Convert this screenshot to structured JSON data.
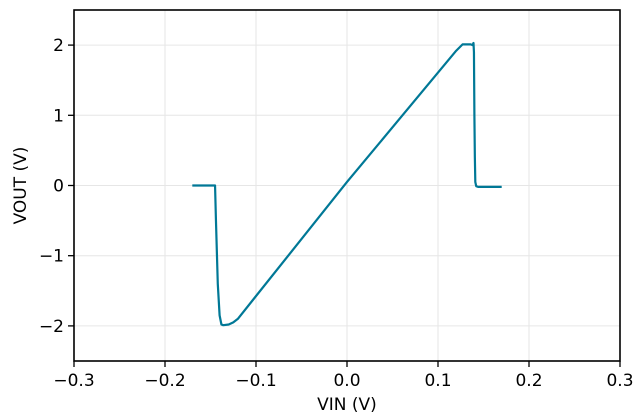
{
  "chart_data": {
    "type": "line",
    "title": "",
    "xlabel": "VIN (V)",
    "ylabel": "VOUT (V)",
    "xlim": [
      -0.3,
      0.3
    ],
    "ylim": [
      -2.5,
      2.5
    ],
    "xticks": [
      -0.3,
      -0.2,
      -0.1,
      0.0,
      0.1,
      0.2,
      0.3
    ],
    "xtick_labels": [
      "−0.3",
      "−0.2",
      "−0.1",
      "0.0",
      "0.1",
      "0.2",
      "0.3"
    ],
    "yticks": [
      -2,
      -1,
      0,
      1,
      2
    ],
    "ytick_labels": [
      "−2",
      "−1",
      "0",
      "1",
      "2"
    ],
    "grid": true,
    "series": [
      {
        "color": "#007896",
        "x": [
          -0.17,
          -0.145,
          -0.144,
          -0.142,
          -0.14,
          -0.138,
          -0.136,
          -0.13,
          -0.125,
          -0.12,
          0.0,
          0.12,
          0.127,
          0.132,
          0.136,
          0.138,
          0.139,
          0.1395,
          0.14,
          0.1405,
          0.141,
          0.142,
          0.144,
          0.17
        ],
        "y": [
          0.0,
          0.0,
          -0.5,
          -1.4,
          -1.85,
          -1.98,
          -1.99,
          -1.98,
          -1.95,
          -1.9,
          0.05,
          1.92,
          2.01,
          2.01,
          2.01,
          2.0,
          2.03,
          1.9,
          1.0,
          0.4,
          0.05,
          -0.01,
          -0.02,
          -0.02
        ]
      }
    ]
  }
}
